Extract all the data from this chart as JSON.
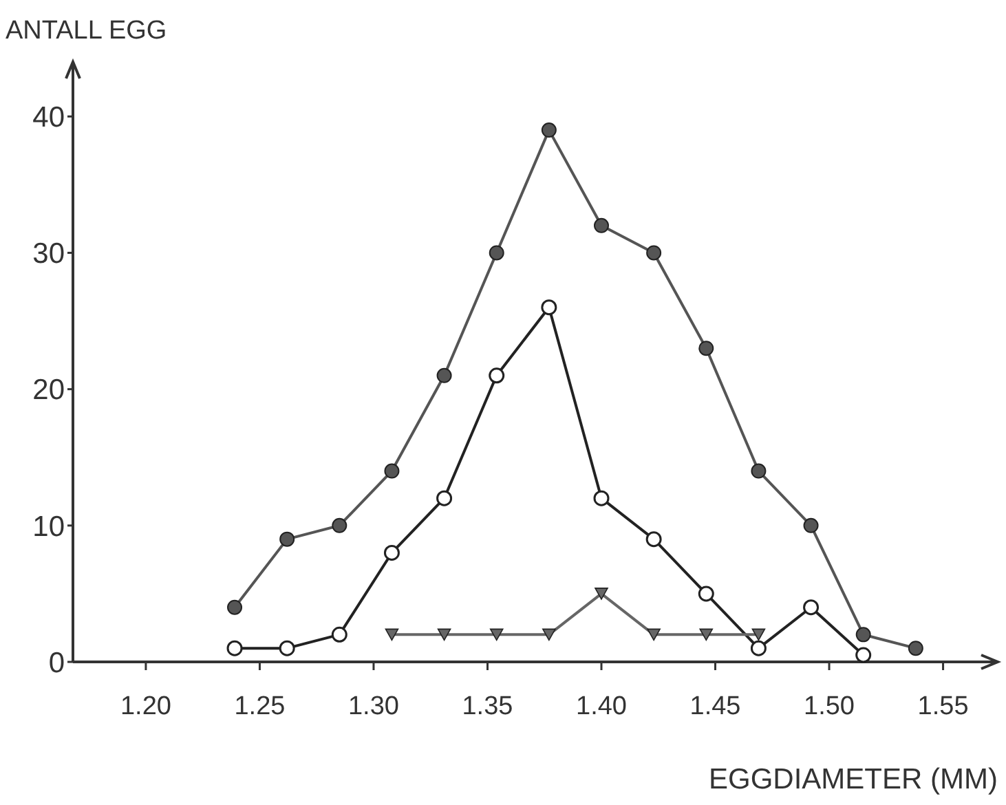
{
  "chart_data": {
    "type": "line",
    "xlabel": "EGGDIAMETER (MM)",
    "ylabel": "ANTALL EGG",
    "xlim": [
      1.168,
      1.574
    ],
    "xticks": [
      {
        "value": 1.2,
        "label": "1.20"
      },
      {
        "value": 1.25,
        "label": "1.25"
      },
      {
        "value": 1.3,
        "label": "1.30"
      },
      {
        "value": 1.35,
        "label": "1.35"
      },
      {
        "value": 1.4,
        "label": "1.40"
      },
      {
        "value": 1.45,
        "label": "1.45"
      },
      {
        "value": 1.5,
        "label": "1.50"
      },
      {
        "value": 1.55,
        "label": "1.55"
      }
    ],
    "ylim": [
      0,
      44
    ],
    "yticks": [
      0,
      10,
      20,
      30,
      40
    ],
    "series": [
      {
        "color": "#555555",
        "marker": "circle",
        "x": [
          1.239,
          1.262,
          1.285,
          1.308,
          1.331,
          1.354,
          1.377,
          1.4,
          1.423,
          1.446,
          1.469,
          1.492,
          1.515,
          1.538
        ],
        "values": [
          4,
          9,
          10,
          14,
          21,
          30,
          39,
          32,
          30,
          23,
          14,
          10,
          2,
          1
        ]
      },
      {
        "color": "#222222",
        "marker": "open-circle",
        "x": [
          1.239,
          1.262,
          1.285,
          1.308,
          1.331,
          1.354,
          1.377,
          1.4,
          1.423,
          1.446,
          1.469,
          1.492,
          1.515
        ],
        "values": [
          1,
          1,
          2,
          8,
          12,
          21,
          26,
          12,
          9,
          5,
          1,
          4,
          0.5
        ]
      },
      {
        "color": "#666666",
        "marker": "triangle",
        "x": [
          1.308,
          1.331,
          1.354,
          1.377,
          1.4,
          1.423,
          1.446,
          1.469
        ],
        "values": [
          2,
          2,
          2,
          2,
          5,
          2,
          2,
          2
        ]
      }
    ]
  }
}
